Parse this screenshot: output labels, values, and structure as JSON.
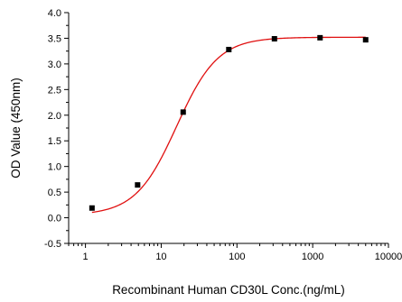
{
  "chart_data": {
    "type": "scatter",
    "xlabel": "Recombinant Human CD30L Conc.(ng/mL)",
    "ylabel": "OD Value (450nm)",
    "x_scale": "log",
    "xlim": [
      0.6,
      10000
    ],
    "ylim": [
      -0.5,
      4.0
    ],
    "x_ticks": [
      1,
      10,
      100,
      1000,
      10000
    ],
    "x_tick_labels": [
      "1",
      "10",
      "100",
      "1000",
      "10000"
    ],
    "y_ticks": [
      -0.5,
      0.0,
      0.5,
      1.0,
      1.5,
      2.0,
      2.5,
      3.0,
      3.5,
      4.0
    ],
    "y_tick_labels": [
      "-0.5",
      "0.0",
      "0.5",
      "1.0",
      "1.5",
      "2.0",
      "2.5",
      "3.0",
      "3.5",
      "4.0"
    ],
    "grid": false,
    "series": [
      {
        "x": [
          1.22,
          4.88,
          19.5,
          78.1,
          312.5,
          1250,
          5000
        ],
        "y": [
          0.19,
          0.64,
          2.06,
          3.28,
          3.49,
          3.51,
          3.47
        ],
        "marker": "square",
        "color": "#000000"
      }
    ],
    "fit_curve": {
      "model": "4PL",
      "bottom": 0.05,
      "top": 3.52,
      "ec50": 16,
      "hill": 1.6,
      "color": "#e01010"
    }
  }
}
